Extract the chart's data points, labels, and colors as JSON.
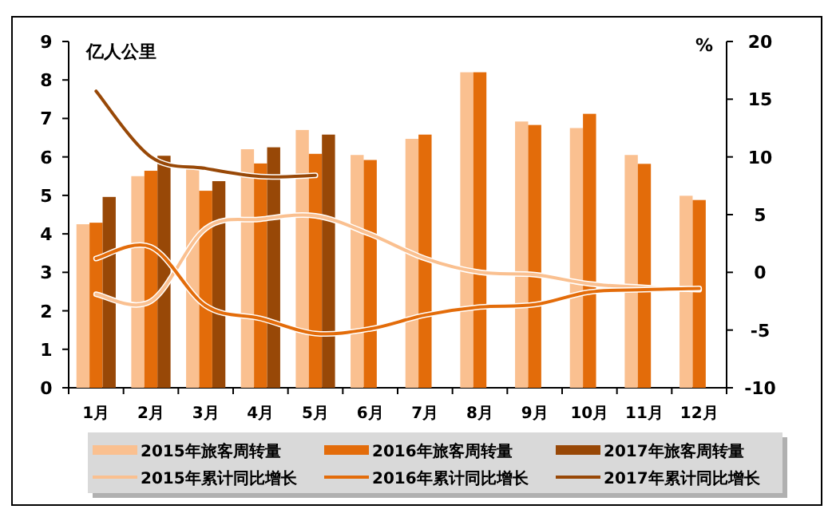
{
  "chart_data": {
    "type": "bar",
    "ylabel": "亿人公里",
    "y2label": "%",
    "categories": [
      "1月",
      "2月",
      "3月",
      "4月",
      "5月",
      "6月",
      "7月",
      "8月",
      "9月",
      "10月",
      "11月",
      "12月"
    ],
    "ylim": [
      0,
      9
    ],
    "yticks": [
      0,
      1,
      2,
      3,
      4,
      5,
      6,
      7,
      8,
      9
    ],
    "y2lim": [
      -10,
      20
    ],
    "y2ticks": [
      -10,
      -5,
      0,
      5,
      10,
      15,
      20
    ],
    "legend": "bottom",
    "series": [
      {
        "name": "2015年旅客周转量",
        "color": "#fac090",
        "values": [
          4.25,
          5.5,
          5.75,
          6.2,
          6.7,
          6.05,
          6.47,
          8.2,
          6.92,
          6.75,
          6.05,
          4.99
        ]
      },
      {
        "name": "2016年旅客周转量",
        "color": "#e36c0a",
        "values": [
          4.29,
          5.64,
          5.12,
          5.83,
          6.08,
          5.92,
          6.58,
          8.2,
          6.83,
          7.12,
          5.82,
          4.88
        ]
      },
      {
        "name": "2017年旅客周转量",
        "color": "#984807",
        "values": [
          4.96,
          6.03,
          5.37,
          6.25,
          6.58,
          null,
          null,
          null,
          null,
          null,
          null,
          null
        ]
      },
      {
        "name": "2015年累计同比增长",
        "type": "line",
        "axis": "y2",
        "color": "#fac090",
        "values": [
          -1.9,
          -2.5,
          3.8,
          4.6,
          4.9,
          3.3,
          1.2,
          0,
          -0.2,
          -1,
          -1.3,
          -1.5
        ]
      },
      {
        "name": "2016年累计同比增长",
        "type": "line",
        "axis": "y2",
        "color": "#e36c0a",
        "values": [
          1.2,
          2.2,
          -2.9,
          -4,
          -5.3,
          -4.9,
          -3.7,
          -3,
          -2.8,
          -1.7,
          -1.5,
          -1.4
        ]
      },
      {
        "name": "2017年累计同比增长",
        "type": "line",
        "axis": "y2",
        "color": "#984807",
        "values": [
          15.7,
          10,
          9,
          8.3,
          8.4,
          null,
          null,
          null,
          null,
          null,
          null,
          null
        ]
      }
    ]
  }
}
